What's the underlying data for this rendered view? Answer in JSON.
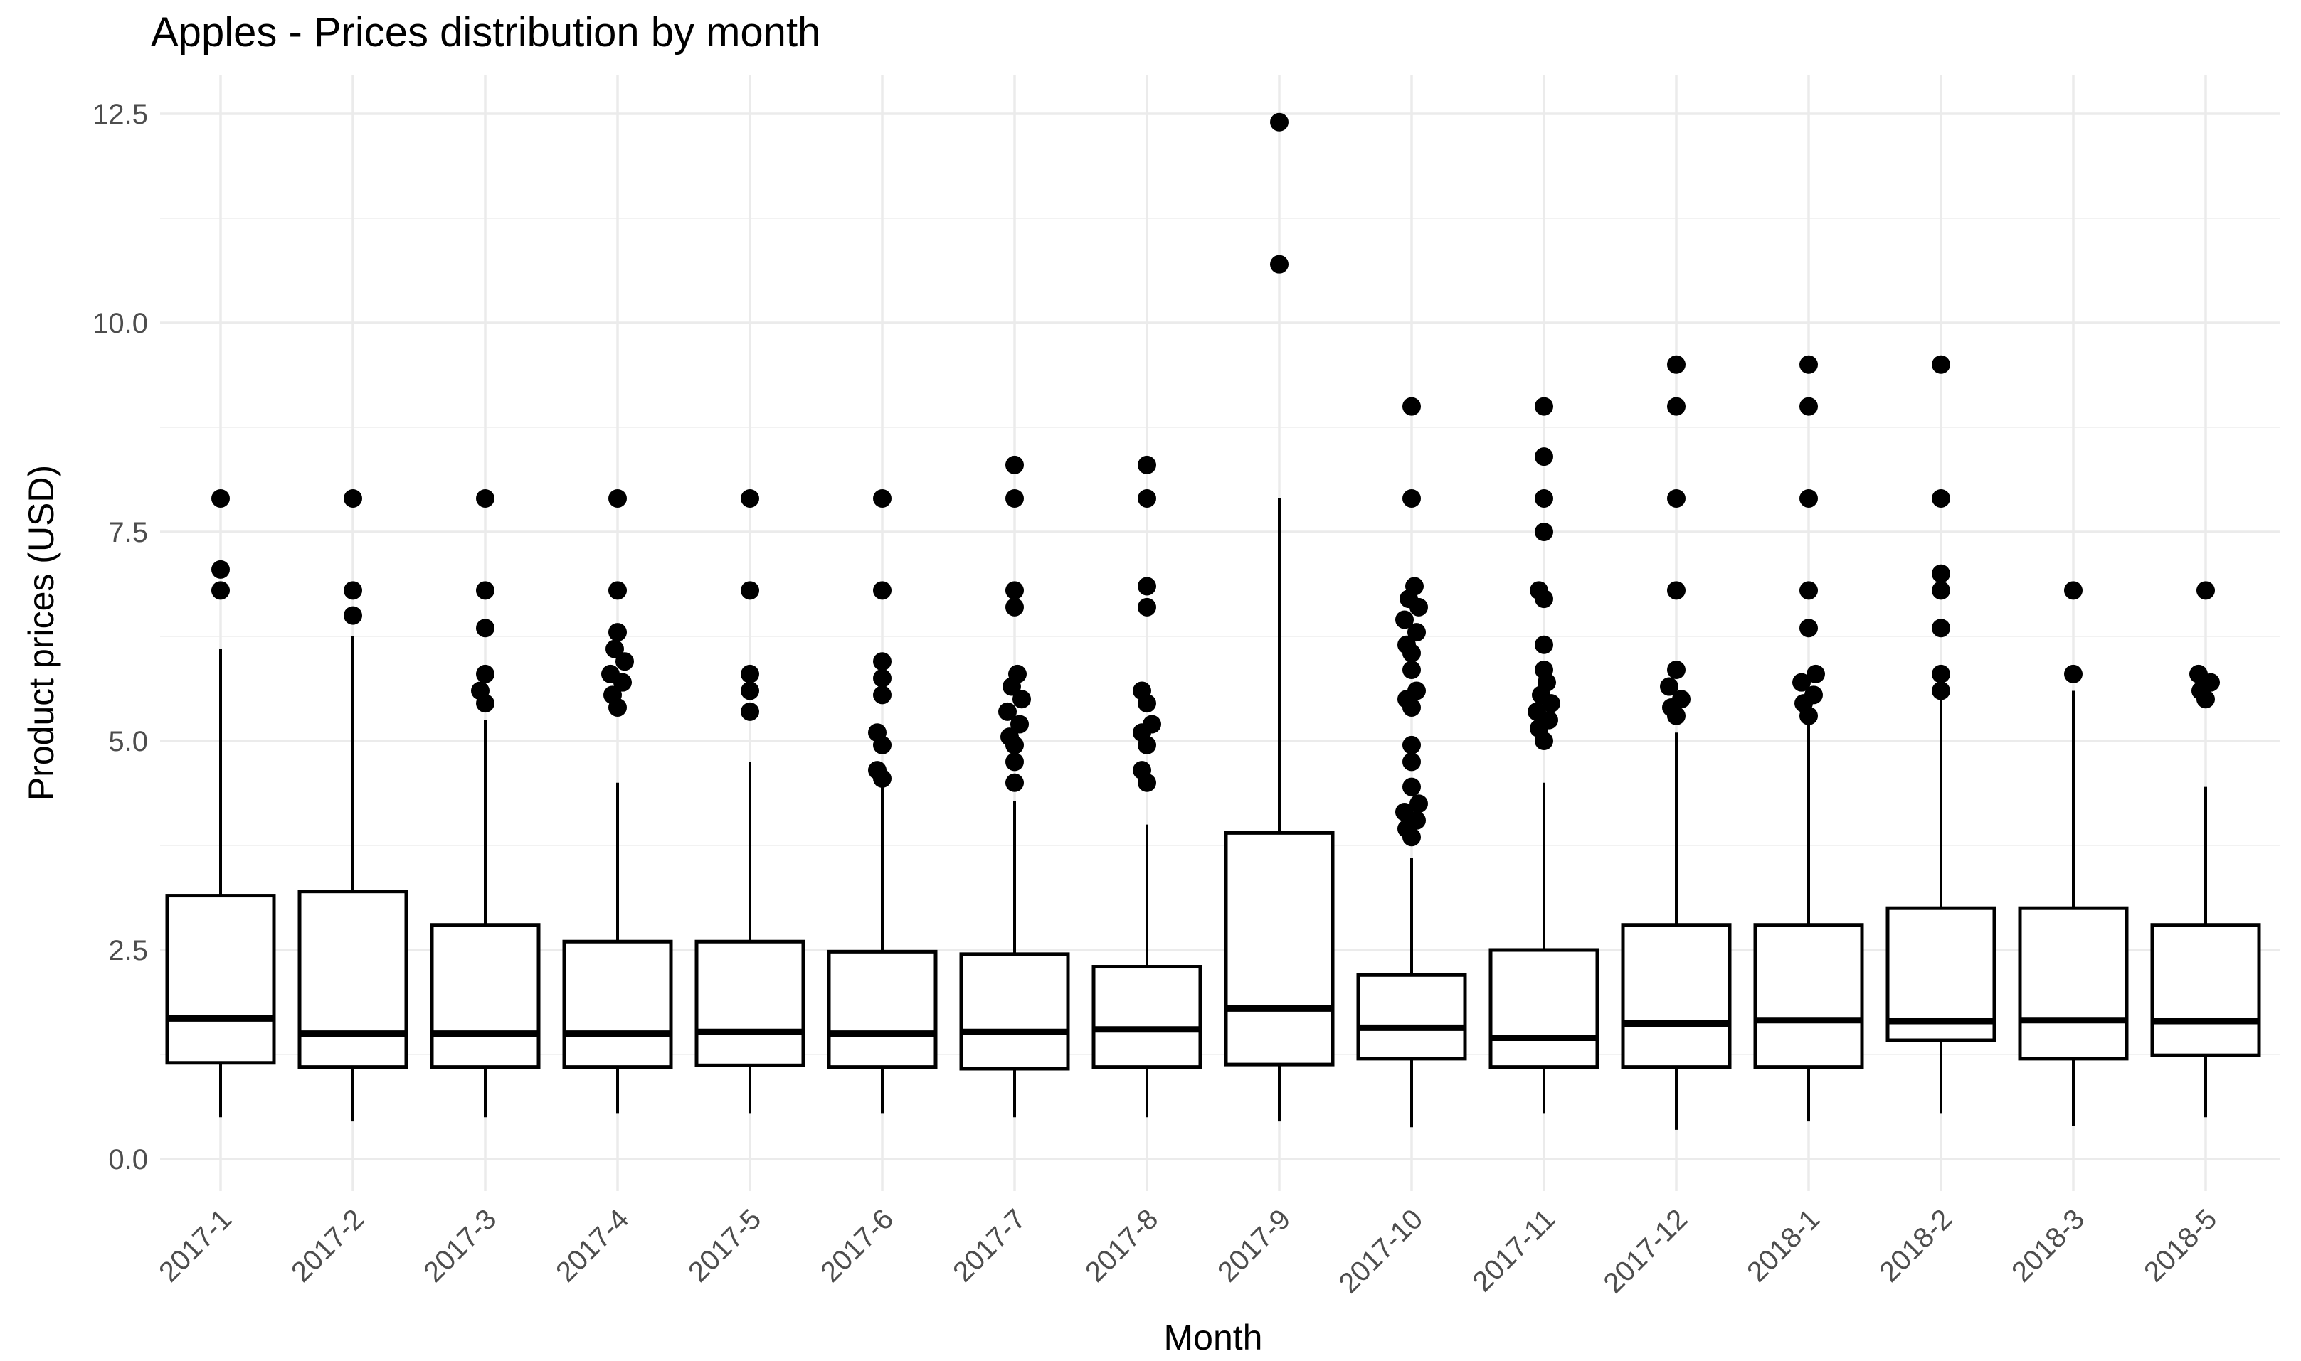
{
  "chart_data": {
    "type": "boxplot",
    "title": "Apples - Prices distribution by month",
    "xlabel": "Month",
    "ylabel": "Product prices (USD)",
    "ylim": [
      -0.4,
      13.0
    ],
    "yticks": [
      0.0,
      2.5,
      5.0,
      7.5,
      10.0,
      12.5
    ],
    "ytick_labels": [
      "0.0",
      "2.5",
      "5.0",
      "7.5",
      "10.0",
      "12.5"
    ],
    "yminor_gridlines": [
      1.25,
      3.75,
      6.25,
      8.75,
      11.25
    ],
    "grid": "on",
    "legend_position": "none",
    "categories": [
      "2017-1",
      "2017-2",
      "2017-3",
      "2017-4",
      "2017-5",
      "2017-6",
      "2017-7",
      "2017-8",
      "2017-9",
      "2017-10",
      "2017-11",
      "2017-12",
      "2018-1",
      "2018-2",
      "2018-3",
      "2018-5"
    ],
    "boxes": [
      {
        "category": "2017-1",
        "whisker_low": 0.5,
        "q1": 1.15,
        "median": 1.68,
        "q3": 3.15,
        "whisker_high": 6.1,
        "outliers": [
          6.8,
          7.05,
          7.9
        ]
      },
      {
        "category": "2017-2",
        "whisker_low": 0.45,
        "q1": 1.1,
        "median": 1.5,
        "q3": 3.2,
        "whisker_high": 6.25,
        "outliers": [
          6.5,
          6.8,
          7.9
        ]
      },
      {
        "category": "2017-3",
        "whisker_low": 0.5,
        "q1": 1.1,
        "median": 1.5,
        "q3": 2.8,
        "whisker_high": 5.25,
        "outliers": [
          5.45,
          5.6,
          5.8,
          6.35,
          6.8,
          7.9
        ]
      },
      {
        "category": "2017-4",
        "whisker_low": 0.55,
        "q1": 1.1,
        "median": 1.5,
        "q3": 2.6,
        "whisker_high": 4.5,
        "outliers": [
          5.4,
          5.55,
          5.7,
          5.8,
          5.95,
          6.1,
          6.3,
          6.8,
          7.9
        ]
      },
      {
        "category": "2017-5",
        "whisker_low": 0.55,
        "q1": 1.12,
        "median": 1.52,
        "q3": 2.6,
        "whisker_high": 4.75,
        "outliers": [
          5.35,
          5.6,
          5.8,
          6.8,
          7.9
        ]
      },
      {
        "category": "2017-6",
        "whisker_low": 0.55,
        "q1": 1.1,
        "median": 1.5,
        "q3": 2.48,
        "whisker_high": 4.45,
        "outliers": [
          4.55,
          4.65,
          4.95,
          5.1,
          5.55,
          5.75,
          5.95,
          6.8,
          7.9
        ]
      },
      {
        "category": "2017-7",
        "whisker_low": 0.5,
        "q1": 1.08,
        "median": 1.52,
        "q3": 2.45,
        "whisker_high": 4.28,
        "outliers": [
          4.5,
          4.75,
          4.95,
          5.05,
          5.2,
          5.35,
          5.5,
          5.65,
          5.8,
          6.6,
          6.8,
          7.9,
          8.3
        ]
      },
      {
        "category": "2017-8",
        "whisker_low": 0.5,
        "q1": 1.1,
        "median": 1.55,
        "q3": 2.3,
        "whisker_high": 4.0,
        "outliers": [
          4.5,
          4.65,
          4.95,
          5.1,
          5.2,
          5.45,
          5.6,
          6.6,
          6.85,
          7.9,
          8.3
        ]
      },
      {
        "category": "2017-9",
        "whisker_low": 0.45,
        "q1": 1.13,
        "median": 1.8,
        "q3": 3.9,
        "whisker_high": 7.9,
        "outliers": [
          10.7,
          12.4
        ]
      },
      {
        "category": "2017-10",
        "whisker_low": 0.38,
        "q1": 1.2,
        "median": 1.57,
        "q3": 2.2,
        "whisker_high": 3.6,
        "outliers": [
          3.85,
          3.95,
          4.05,
          4.15,
          4.25,
          4.45,
          4.75,
          4.95,
          5.4,
          5.5,
          5.6,
          5.85,
          6.05,
          6.15,
          6.3,
          6.45,
          6.6,
          6.7,
          6.85,
          7.9,
          9.0
        ]
      },
      {
        "category": "2017-11",
        "whisker_low": 0.55,
        "q1": 1.1,
        "median": 1.45,
        "q3": 2.5,
        "whisker_high": 4.5,
        "outliers": [
          5.0,
          5.15,
          5.25,
          5.35,
          5.45,
          5.55,
          5.7,
          5.85,
          6.15,
          6.7,
          6.8,
          7.5,
          7.9,
          8.4,
          9.0
        ]
      },
      {
        "category": "2017-12",
        "whisker_low": 0.35,
        "q1": 1.1,
        "median": 1.62,
        "q3": 2.8,
        "whisker_high": 5.1,
        "outliers": [
          5.3,
          5.4,
          5.5,
          5.65,
          5.85,
          6.8,
          7.9,
          9.0,
          9.5
        ]
      },
      {
        "category": "2018-1",
        "whisker_low": 0.45,
        "q1": 1.1,
        "median": 1.66,
        "q3": 2.8,
        "whisker_high": 5.2,
        "outliers": [
          5.3,
          5.45,
          5.55,
          5.7,
          5.8,
          6.35,
          6.8,
          7.9,
          9.0,
          9.5
        ]
      },
      {
        "category": "2018-2",
        "whisker_low": 0.55,
        "q1": 1.42,
        "median": 1.65,
        "q3": 3.0,
        "whisker_high": 5.55,
        "outliers": [
          5.6,
          5.8,
          6.35,
          6.8,
          7.0,
          7.9,
          9.5
        ]
      },
      {
        "category": "2018-3",
        "whisker_low": 0.4,
        "q1": 1.2,
        "median": 1.66,
        "q3": 3.0,
        "whisker_high": 5.6,
        "outliers": [
          5.8,
          6.8
        ]
      },
      {
        "category": "2018-5",
        "whisker_low": 0.5,
        "q1": 1.24,
        "median": 1.65,
        "q3": 2.8,
        "whisker_high": 4.45,
        "outliers": [
          5.5,
          5.6,
          5.7,
          5.8,
          6.8
        ]
      }
    ]
  },
  "style": {
    "background": "#ffffff",
    "box_stroke": "#000000",
    "box_fill": "#ffffff",
    "median_color": "#000000",
    "outlier_color": "#000000",
    "grid_major": "#ebebeb",
    "grid_minor": "#f2f2f2",
    "tick_label_color": "#4d4d4d",
    "title_color": "#000000",
    "axis_title_color": "#000000"
  }
}
